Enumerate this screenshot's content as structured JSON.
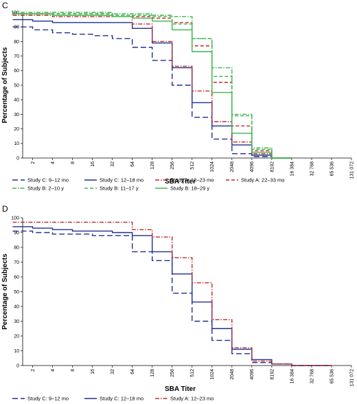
{
  "chart_data": [
    {
      "panel": "C",
      "type": "line",
      "step": true,
      "xlabel": "SBA Titer",
      "ylabel": "Percentage of Subjects",
      "xscale": "log2",
      "x_tick_labels": [
        "2",
        "4",
        "8",
        "16",
        "32",
        "64",
        "128",
        "256",
        "512",
        "1024",
        "2048",
        "4096",
        "8192",
        "16 384",
        "32 768",
        "65 536",
        "131 072"
      ],
      "y_tick_labels": [
        "0",
        "10",
        "20",
        "30",
        "40",
        "50",
        "60",
        "70",
        "80",
        "90",
        "100"
      ],
      "ylim": [
        0,
        100
      ],
      "grid": false,
      "legend_position": "bottom",
      "series": [
        {
          "name": "Study C: 9–12 mo",
          "color": "#1f2f8f",
          "dash": "long-dash",
          "x": [
            2,
            4,
            8,
            16,
            32,
            64,
            128,
            256,
            512,
            1024,
            2048,
            4096,
            8192,
            16384
          ],
          "y": [
            90,
            88,
            86,
            85,
            84,
            82,
            76,
            67,
            50,
            28,
            13,
            3,
            1,
            0
          ]
        },
        {
          "name": "Study C: 12–18 mo",
          "color": "#1f2f8f",
          "dash": "solid",
          "x": [
            2,
            4,
            8,
            16,
            32,
            64,
            128,
            256,
            512,
            1024,
            2048,
            4096,
            8192,
            16384
          ],
          "y": [
            95,
            94,
            93,
            93,
            93,
            93,
            89,
            79,
            62,
            38,
            22,
            9,
            2,
            0
          ]
        },
        {
          "name": "Study A: 12–23 mo",
          "color": "#c0282d",
          "dash": "dash-dot",
          "x": [
            2,
            4,
            8,
            16,
            32,
            64,
            128,
            256,
            512,
            1024,
            2048,
            4096,
            8192,
            16384
          ],
          "y": [
            98,
            98,
            97,
            97,
            97,
            97,
            92,
            80,
            63,
            46,
            25,
            11,
            3,
            0
          ]
        },
        {
          "name": "Study A: 22–33 mo",
          "color": "#c0282d",
          "dash": "dash",
          "x": [
            2,
            4,
            8,
            16,
            32,
            64,
            128,
            256,
            512,
            1024,
            2048,
            4096,
            8192,
            16384
          ],
          "y": [
            99,
            99,
            99,
            99,
            99,
            98,
            97,
            96,
            93,
            77,
            52,
            22,
            5,
            0
          ]
        },
        {
          "name": "Study B: 2–10 y",
          "color": "#3ab54a",
          "dash": "dash-dot",
          "x": [
            2,
            4,
            8,
            16,
            32,
            64,
            128,
            256,
            512,
            1024,
            2048,
            4096,
            8192,
            16384
          ],
          "y": [
            100,
            100,
            100,
            100,
            100,
            99,
            99,
            98,
            97,
            82,
            62,
            30,
            7,
            0
          ]
        },
        {
          "name": "Study B: 11–17 y",
          "color": "#3ab54a",
          "dash": "dash",
          "x": [
            2,
            4,
            8,
            16,
            32,
            64,
            128,
            256,
            512,
            1024,
            2048,
            4096,
            8192,
            16384
          ],
          "y": [
            99,
            99,
            99,
            99,
            99,
            98,
            98,
            97,
            92,
            82,
            56,
            29,
            6,
            0
          ]
        },
        {
          "name": "Study B: 18–29 y",
          "color": "#3ab54a",
          "dash": "solid",
          "x": [
            2,
            4,
            8,
            16,
            32,
            64,
            128,
            256,
            512,
            1024,
            2048,
            4096,
            8192,
            16384
          ],
          "y": [
            99,
            99,
            98,
            98,
            98,
            97,
            96,
            94,
            88,
            73,
            45,
            17,
            4,
            0
          ]
        }
      ]
    },
    {
      "panel": "D",
      "type": "line",
      "step": true,
      "xlabel": "SBA Titer",
      "ylabel": "Percentage of Subjects",
      "xscale": "log2",
      "x_tick_labels": [
        "2",
        "4",
        "8",
        "16",
        "32",
        "64",
        "128",
        "256",
        "512",
        "1024",
        "2048",
        "4096",
        "8192",
        "16 384",
        "32 768",
        "65 536",
        "131 072"
      ],
      "y_tick_labels": [
        "0",
        "10",
        "20",
        "30",
        "40",
        "50",
        "60",
        "70",
        "80",
        "90",
        "100"
      ],
      "ylim": [
        0,
        100
      ],
      "grid": false,
      "legend_position": "bottom",
      "series": [
        {
          "name": "Study C: 9–12 mo",
          "color": "#1f2f8f",
          "dash": "long-dash",
          "x": [
            2,
            4,
            8,
            16,
            32,
            64,
            128,
            256,
            512,
            1024,
            2048,
            4096,
            8192,
            16384,
            32768,
            65536
          ],
          "y": [
            91,
            90,
            89,
            89,
            88,
            88,
            77,
            71,
            49,
            30,
            17,
            8,
            2,
            1,
            0,
            0
          ]
        },
        {
          "name": "Study C: 12–18 mo",
          "color": "#1f2f8f",
          "dash": "solid",
          "x": [
            2,
            4,
            8,
            16,
            32,
            64,
            128,
            256,
            512,
            1024,
            2048,
            4096,
            8192,
            16384,
            32768,
            65536
          ],
          "y": [
            94,
            93,
            92,
            91,
            91,
            90,
            88,
            77,
            62,
            43,
            25,
            11,
            4,
            1,
            0,
            0
          ]
        },
        {
          "name": "Study A: 12–23 mo",
          "color": "#c0282d",
          "dash": "dash-dot",
          "x": [
            2,
            4,
            8,
            16,
            32,
            64,
            128,
            256,
            512,
            1024,
            2048,
            4096,
            8192,
            16384,
            32768,
            65536
          ],
          "y": [
            97,
            97,
            97,
            97,
            97,
            97,
            92,
            87,
            73,
            56,
            31,
            12,
            3,
            1,
            0,
            0
          ]
        }
      ]
    }
  ]
}
